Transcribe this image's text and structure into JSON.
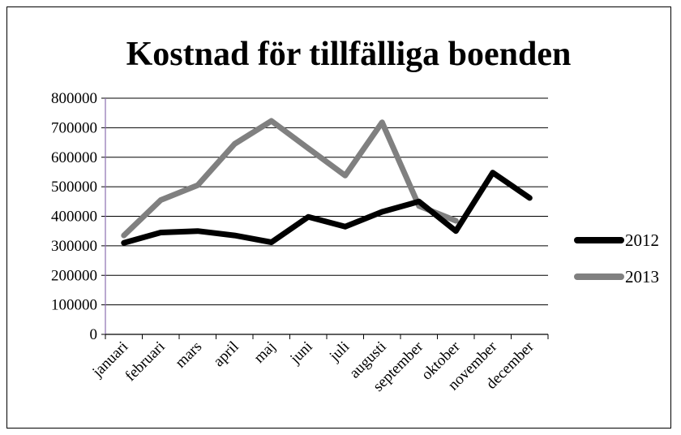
{
  "chart_data": {
    "type": "line",
    "title": "Kostnad för tillfälliga boenden",
    "xlabel": "",
    "ylabel": "",
    "categories": [
      "januari",
      "februari",
      "mars",
      "april",
      "maj",
      "juni",
      "juli",
      "augusti",
      "september",
      "oktober",
      "november",
      "december"
    ],
    "ylim": [
      0,
      800000
    ],
    "yticks": [
      "0",
      "100000",
      "200000",
      "300000",
      "400000",
      "500000",
      "600000",
      "700000",
      "800000"
    ],
    "grid": true,
    "legend_position": "right",
    "series": [
      {
        "name": "2012",
        "color": "#000000",
        "values": [
          310000,
          345000,
          350000,
          335000,
          312000,
          398000,
          365000,
          415000,
          450000,
          350000,
          548000,
          462000
        ]
      },
      {
        "name": "2013",
        "color": "#808080",
        "values": [
          335000,
          455000,
          505000,
          645000,
          723000,
          630000,
          538000,
          718000,
          435000,
          385000,
          null,
          null
        ]
      }
    ]
  }
}
